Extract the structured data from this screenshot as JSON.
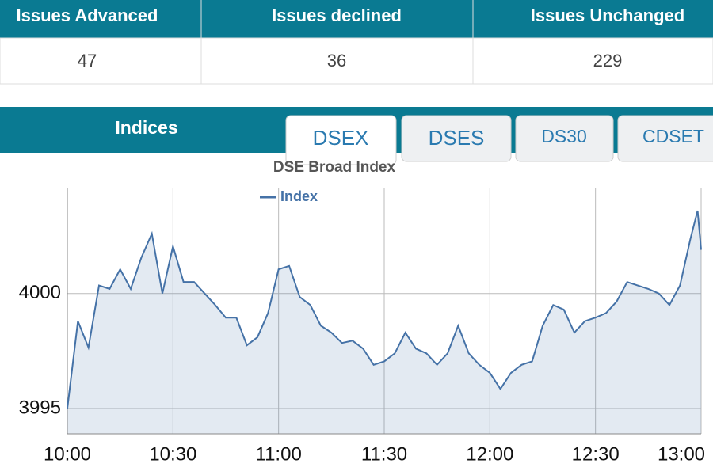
{
  "table": {
    "headers": [
      "Issues Advanced",
      "Issues declined",
      "Issues Unchanged"
    ],
    "rows": [
      [
        "47",
        "36",
        "229"
      ]
    ]
  },
  "section": {
    "title": "Indices",
    "tabs": [
      "DSEX",
      "DSES",
      "DS30",
      "CDSET"
    ]
  },
  "chart_data": {
    "type": "line",
    "title": "DSE Broad Index",
    "x": [
      "10:00",
      "10:03",
      "10:06",
      "10:09",
      "10:12",
      "10:15",
      "10:18",
      "10:21",
      "10:24",
      "10:27",
      "10:30",
      "10:33",
      "10:36",
      "10:39",
      "10:42",
      "10:45",
      "10:48",
      "10:51",
      "10:54",
      "10:57",
      "11:00",
      "11:03",
      "11:06",
      "11:09",
      "11:12",
      "11:15",
      "11:18",
      "11:21",
      "11:24",
      "11:27",
      "11:30",
      "11:33",
      "11:36",
      "11:39",
      "11:42",
      "11:45",
      "11:48",
      "11:51",
      "11:54",
      "11:57",
      "12:00",
      "12:03",
      "12:06",
      "12:09",
      "12:12",
      "12:15",
      "12:18",
      "12:21",
      "12:24",
      "12:27",
      "12:30",
      "12:33",
      "12:36",
      "12:39",
      "12:42",
      "12:45",
      "12:48",
      "12:51",
      "12:54",
      "12:57",
      "12:59",
      "13:00"
    ],
    "series": [
      {
        "name": "Index",
        "color": "#4572a7",
        "values": [
          3995.0,
          3998.8,
          3997.65,
          4000.35,
          4000.2,
          4001.05,
          4000.2,
          4001.55,
          4002.6,
          4000.0,
          4002.05,
          4000.5,
          4000.5,
          4000.0,
          3999.5,
          3998.95,
          3998.95,
          3997.75,
          3998.1,
          3999.15,
          4001.05,
          4001.2,
          3999.85,
          3999.5,
          3998.6,
          3998.3,
          3997.85,
          3997.95,
          3997.6,
          3996.9,
          3997.05,
          3997.4,
          3998.3,
          3997.6,
          3997.4,
          3996.9,
          3997.4,
          3998.6,
          3997.4,
          3996.9,
          3996.55,
          3995.85,
          3996.55,
          3996.9,
          3997.05,
          3998.6,
          3999.5,
          3999.3,
          3998.3,
          3998.8,
          3998.95,
          3999.15,
          3999.65,
          4000.5,
          4000.35,
          4000.2,
          4000.0,
          3999.5,
          4000.35,
          4002.4,
          4003.6,
          4001.9
        ]
      }
    ],
    "xlim": [
      "10:00",
      "13:00"
    ],
    "xticks": [
      "10:00",
      "10:30",
      "11:00",
      "11:30",
      "12:00",
      "12:30",
      "13:00"
    ],
    "ylim": [
      3993.9,
      4004.6
    ],
    "yticks": [
      3995,
      4000
    ],
    "grid": true
  }
}
